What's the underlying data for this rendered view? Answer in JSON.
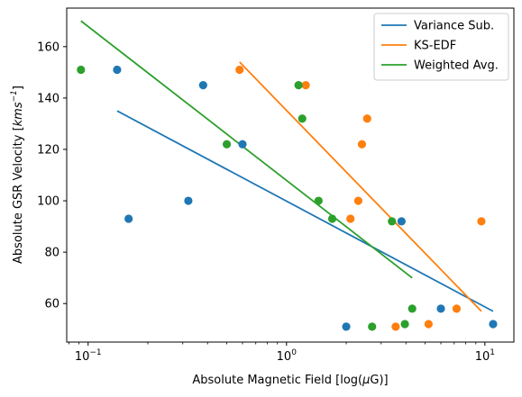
{
  "chart_data": {
    "type": "scatter",
    "xscale": "log",
    "xlabel_prefix": "Absolute Magnetic Field [log(",
    "xlabel_mu": "μ",
    "xlabel_suffix": "G)]",
    "ylabel_prefix": "Absolute GSR Velocity [",
    "ylabel_unit": "kms",
    "ylabel_exp": "−1",
    "ylabel_suffix": "]",
    "xlim": [
      0.078,
      14.0
    ],
    "ylim": [
      45,
      175
    ],
    "x_ticks": [
      {
        "value": 0.1,
        "base": "10",
        "exp": "−1"
      },
      {
        "value": 1,
        "base": "10",
        "exp": "0"
      },
      {
        "value": 10,
        "base": "10",
        "exp": "1"
      }
    ],
    "y_ticks": [
      60,
      80,
      100,
      120,
      140,
      160
    ],
    "grid": false,
    "legend_position": "top-right",
    "series": [
      {
        "name": "Variance Sub.",
        "color": "#1f77b4",
        "points": [
          [
            0.14,
            151
          ],
          [
            0.16,
            93
          ],
          [
            0.32,
            100
          ],
          [
            0.38,
            145
          ],
          [
            0.6,
            122
          ],
          [
            2.0,
            51
          ],
          [
            3.8,
            92
          ],
          [
            6.0,
            58
          ],
          [
            11.0,
            52
          ]
        ],
        "fit": [
          [
            0.14,
            135
          ],
          [
            11.0,
            57
          ]
        ]
      },
      {
        "name": "KS-EDF",
        "color": "#ff7f0e",
        "points": [
          [
            0.58,
            151
          ],
          [
            1.25,
            145
          ],
          [
            2.1,
            93
          ],
          [
            2.3,
            100
          ],
          [
            2.4,
            122
          ],
          [
            2.55,
            132
          ],
          [
            3.55,
            51
          ],
          [
            5.2,
            52
          ],
          [
            7.2,
            58
          ],
          [
            9.6,
            92
          ]
        ],
        "fit": [
          [
            0.58,
            154
          ],
          [
            9.6,
            57
          ]
        ]
      },
      {
        "name": "Weighted Avg.",
        "color": "#2ca02c",
        "points": [
          [
            0.092,
            151
          ],
          [
            0.5,
            122
          ],
          [
            1.15,
            145
          ],
          [
            1.2,
            132
          ],
          [
            1.45,
            100
          ],
          [
            1.7,
            93
          ],
          [
            2.7,
            51
          ],
          [
            3.4,
            92
          ],
          [
            3.95,
            52
          ],
          [
            4.3,
            58
          ]
        ],
        "fit": [
          [
            0.092,
            170
          ],
          [
            4.3,
            70
          ]
        ]
      }
    ]
  }
}
